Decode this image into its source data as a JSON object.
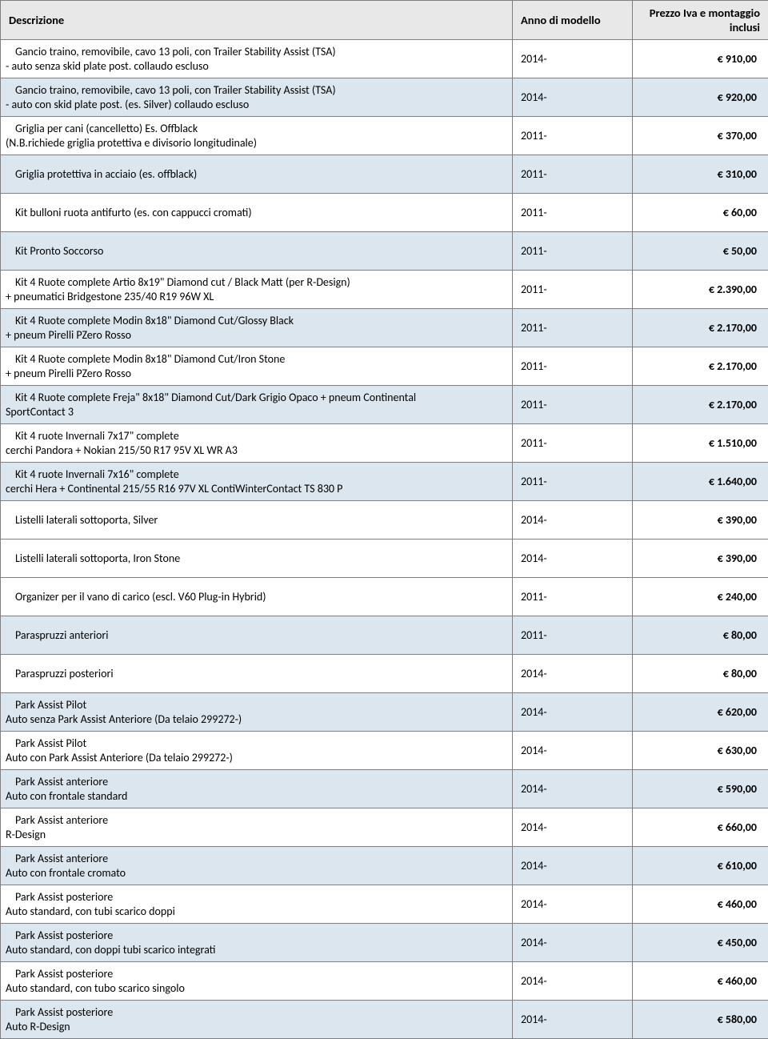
{
  "colors": {
    "header_bg": "#e8e8e8",
    "shaded_bg": "#dce6ef",
    "plain_bg": "#ffffff",
    "border": "#7f7f7f",
    "text": "#000000"
  },
  "headers": {
    "description": "Descrizione",
    "year": "Anno di modello",
    "price": "Prezzo Iva e montaggio inclusi"
  },
  "rows": [
    {
      "shaded": false,
      "desc_l1": "Gancio traino, removibile, cavo 13 poli, con Trailer Stability Assist (TSA)",
      "desc_l2": "- auto senza skid plate post.  collaudo escluso",
      "year": "2014-",
      "price": "€ 910,00"
    },
    {
      "shaded": true,
      "desc_l1": "Gancio traino, removibile, cavo 13 poli, con Trailer Stability Assist (TSA)",
      "desc_l2": "- auto con skid plate post. (es. Silver)      collaudo escluso",
      "year": "2014-",
      "price": "€ 920,00"
    },
    {
      "shaded": false,
      "desc_l1": "Griglia per cani (cancelletto)  Es. Offblack",
      "desc_l2": "(N.B.richiede griglia protettiva e divisorio longitudinale)",
      "year": "2011-",
      "price": "€ 370,00"
    },
    {
      "shaded": true,
      "desc_l1": "Griglia protettiva in acciaio  (es. offblack)",
      "desc_l2": "",
      "year": "2011-",
      "price": "€ 310,00"
    },
    {
      "shaded": false,
      "desc_l1": "Kit bulloni ruota antifurto (es. con cappucci cromati)",
      "desc_l2": "",
      "year": "2011-",
      "price": "€ 60,00"
    },
    {
      "shaded": true,
      "desc_l1": "Kit Pronto Soccorso",
      "desc_l2": "",
      "year": "2011-",
      "price": "€ 50,00"
    },
    {
      "shaded": false,
      "desc_l1": "Kit 4 Ruote complete Artio 8x19\"  Diamond cut / Black Matt (per R-Design)",
      "desc_l2": "+ pneumatici Bridgestone 235/40 R19 96W XL",
      "year": "2011-",
      "price": "€ 2.390,00"
    },
    {
      "shaded": true,
      "desc_l1": "Kit 4 Ruote complete Modin 8x18\" Diamond Cut/Glossy Black",
      "desc_l2": "+ pneum Pirelli PZero Rosso",
      "year": "2011-",
      "price": "€ 2.170,00"
    },
    {
      "shaded": false,
      "desc_l1": "Kit 4 Ruote complete Modin 8x18\" Diamond Cut/Iron Stone",
      "desc_l2": "+ pneum Pirelli PZero Rosso",
      "year": "2011-",
      "price": "€ 2.170,00"
    },
    {
      "shaded": true,
      "desc_l1": "Kit 4 Ruote complete Freja\" 8x18\" Diamond Cut/Dark Grigio Opaco + pneum Continental",
      "desc_l2": "SportContact 3",
      "year": "2011-",
      "price": "€ 2.170,00"
    },
    {
      "shaded": false,
      "desc_l1": "Kit 4 ruote Invernali 7x17\" complete",
      "desc_l2": "cerchi Pandora + Nokian 215/50 R17 95V XL WR A3",
      "year": "2011-",
      "price": "€ 1.510,00"
    },
    {
      "shaded": true,
      "desc_l1": "Kit 4 ruote Invernali 7x16\" complete",
      "desc_l2": "cerchi Hera + Continental 215/55 R16 97V XL ContiWinterContact TS 830 P",
      "year": "2011-",
      "price": "€ 1.640,00"
    },
    {
      "shaded": false,
      "desc_l1": "Listelli laterali sottoporta, Silver",
      "desc_l2": "",
      "year": "2014-",
      "price": "€ 390,00"
    },
    {
      "shaded": false,
      "desc_l1": "Listelli laterali sottoporta, Iron Stone",
      "desc_l2": "",
      "year": "2014-",
      "price": "€ 390,00"
    },
    {
      "shaded": false,
      "desc_l1": "Organizer per il vano di carico (escl. V60 Plug-in Hybrid)",
      "desc_l2": "",
      "year": "2011-",
      "price": "€ 240,00"
    },
    {
      "shaded": true,
      "desc_l1": "Paraspruzzi anteriori",
      "desc_l2": "",
      "year": "2011-",
      "price": "€ 80,00"
    },
    {
      "shaded": false,
      "desc_l1": "Paraspruzzi posteriori",
      "desc_l2": "",
      "year": "2014-",
      "price": "€ 80,00"
    },
    {
      "shaded": true,
      "desc_l1": "Park Assist Pilot",
      "desc_l2": "Auto senza Park Assist Anteriore  (Da telaio 299272-)",
      "year": "2014-",
      "price": "€ 620,00"
    },
    {
      "shaded": false,
      "desc_l1": "Park Assist Pilot",
      "desc_l2": "Auto con Park Assist Anteriore  (Da telaio 299272-)",
      "year": "2014-",
      "price": "€ 630,00"
    },
    {
      "shaded": true,
      "desc_l1": "Park Assist anteriore",
      "desc_l2": "Auto con frontale standard",
      "year": "2014-",
      "price": "€ 590,00"
    },
    {
      "shaded": false,
      "desc_l1": "Park Assist anteriore",
      "desc_l2": "R-Design",
      "year": "2014-",
      "price": "€ 660,00"
    },
    {
      "shaded": true,
      "desc_l1": "Park Assist anteriore",
      "desc_l2": "Auto con frontale cromato",
      "year": "2014-",
      "price": "€ 610,00"
    },
    {
      "shaded": false,
      "desc_l1": "Park Assist posteriore",
      "desc_l2": "Auto standard, con tubi scarico doppi",
      "year": "2014-",
      "price": "€ 460,00"
    },
    {
      "shaded": true,
      "desc_l1": "Park Assist posteriore",
      "desc_l2": "Auto standard, con doppi tubi scarico integrati",
      "year": "2014-",
      "price": "€ 450,00"
    },
    {
      "shaded": false,
      "desc_l1": "Park Assist posteriore",
      "desc_l2": "Auto standard, con tubo scarico singolo",
      "year": "2014-",
      "price": "€ 460,00"
    },
    {
      "shaded": true,
      "desc_l1": "Park Assist posteriore",
      "desc_l2": "Auto R-Design",
      "year": "2014-",
      "price": "€ 580,00"
    }
  ]
}
